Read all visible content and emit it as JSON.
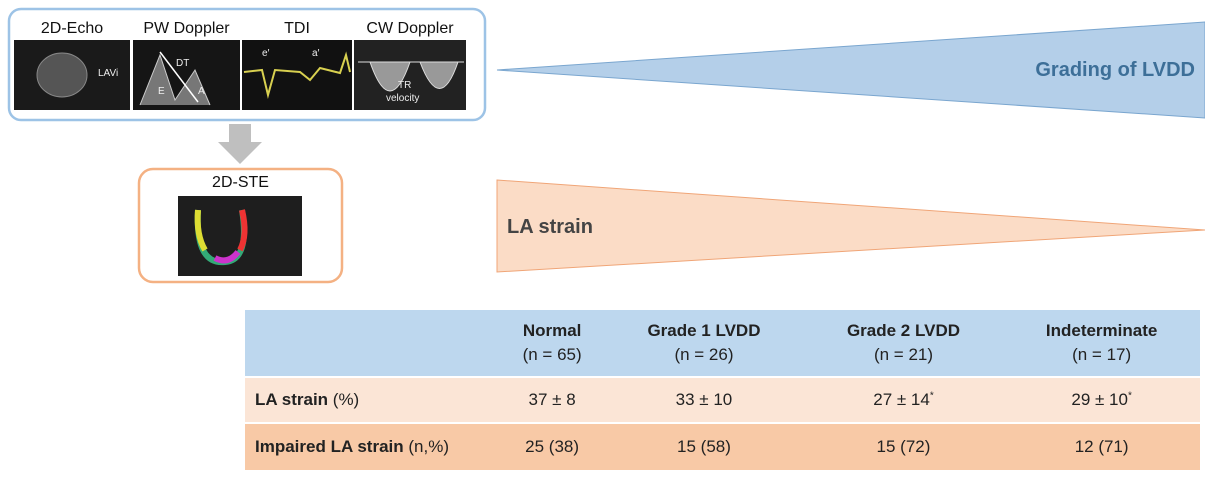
{
  "echo_panels": [
    {
      "label": "2D-Echo",
      "annotations": [
        "LAVi"
      ]
    },
    {
      "label": "PW Doppler",
      "annotations": [
        "DT",
        "E",
        "A"
      ]
    },
    {
      "label": "TDI",
      "annotations": [
        "e′",
        "a′"
      ]
    },
    {
      "label": "CW Doppler",
      "annotations": [
        "TR",
        "velocity"
      ]
    }
  ],
  "ste_panel": {
    "label": "2D-STE"
  },
  "wedges": {
    "grading": "Grading of LVDD",
    "strain": "LA strain"
  },
  "table": {
    "header": [
      {
        "title": "Normal",
        "n": "(n = 65)"
      },
      {
        "title": "Grade 1 LVDD",
        "n": "(n = 26)"
      },
      {
        "title": "Grade 2 LVDD",
        "n": "(n = 21)"
      },
      {
        "title": "Indeterminate",
        "n": "(n = 17)"
      }
    ],
    "rows": [
      {
        "label": "LA strain",
        "unit": "(%)",
        "cells": [
          {
            "value": "37 ± 8"
          },
          {
            "value": "33 ± 10"
          },
          {
            "value": "27 ± 14",
            "note": "*"
          },
          {
            "value": "29 ± 10",
            "note": "*"
          }
        ]
      },
      {
        "label": "Impaired LA strain",
        "unit": "(n,%)",
        "cells": [
          {
            "value": "25 (38)"
          },
          {
            "value": "15 (58)"
          },
          {
            "value": "15 (72)"
          },
          {
            "value": "12 (71)"
          }
        ]
      }
    ]
  }
}
